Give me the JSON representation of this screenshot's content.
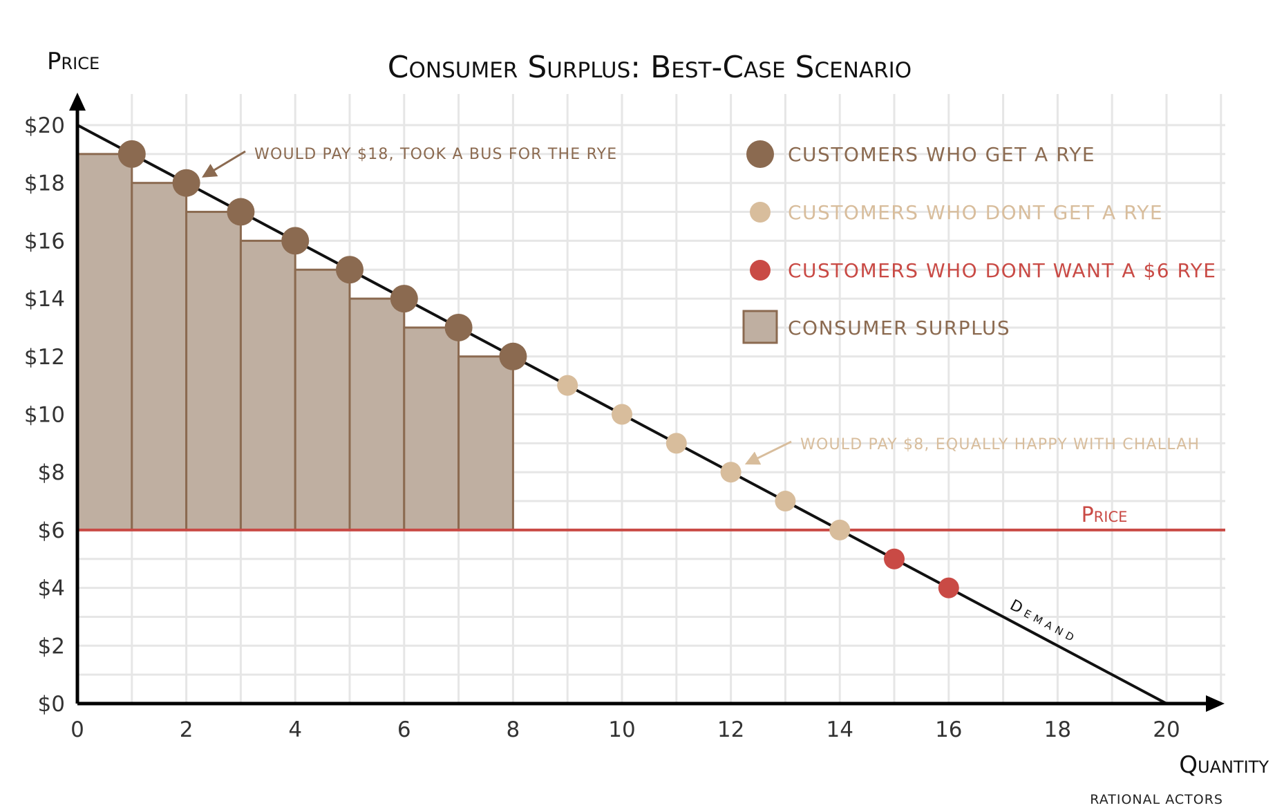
{
  "chart_data": {
    "type": "scatter",
    "title": "Consumer Surplus: Best-Case Scenario",
    "ylabel": "Price",
    "xlabel": "Quantity",
    "xlim": [
      0,
      20
    ],
    "ylim": [
      0,
      20
    ],
    "x_ticks": [
      "0",
      "2",
      "4",
      "6",
      "8",
      "10",
      "12",
      "14",
      "16",
      "18",
      "20"
    ],
    "y_ticks": [
      "$0",
      "$2",
      "$4",
      "$6",
      "$8",
      "$10",
      "$12",
      "$14",
      "$16",
      "$18",
      "$20"
    ],
    "grid": true,
    "colors": {
      "get": "#8b6a50",
      "dont_get": "#d8bd9c",
      "dont_want": "#c94a45",
      "surplus_fill": "#bfafa1",
      "surplus_edge": "#8b6a50",
      "demand": "#111111",
      "price_line": "#c94a45",
      "grid": "#e6e6e6"
    },
    "demand": {
      "label": "Demand",
      "points": [
        [
          0,
          20
        ],
        [
          20,
          0
        ]
      ]
    },
    "price_line": {
      "label": "Price",
      "y": 6
    },
    "series": [
      {
        "name": "customers who get a rye",
        "x": [
          1,
          2,
          3,
          4,
          5,
          6,
          7,
          8
        ],
        "y": [
          19,
          18,
          17,
          16,
          15,
          14,
          13,
          12
        ]
      },
      {
        "name": "customers who dont get a rye",
        "x": [
          9,
          10,
          11,
          12,
          13,
          14
        ],
        "y": [
          11,
          10,
          9,
          8,
          7,
          6
        ]
      },
      {
        "name": "customers who dont want a $6 rye",
        "x": [
          15,
          16
        ],
        "y": [
          5,
          4
        ]
      }
    ],
    "surplus_bars": {
      "name": "consumer surplus",
      "x_start": [
        0,
        1,
        2,
        3,
        4,
        5,
        6,
        7
      ],
      "x_end": [
        1,
        2,
        3,
        4,
        5,
        6,
        7,
        8
      ],
      "top": [
        19,
        18,
        17,
        16,
        15,
        14,
        13,
        12
      ],
      "bottom": 6
    },
    "annotations": [
      {
        "text": "would pay $18, took a bus for the rye",
        "x": 2,
        "y": 18
      },
      {
        "text": "would pay $8, equally happy with challah",
        "x": 12,
        "y": 8
      }
    ],
    "legend_position": "top-right"
  },
  "credit": "rational actors"
}
